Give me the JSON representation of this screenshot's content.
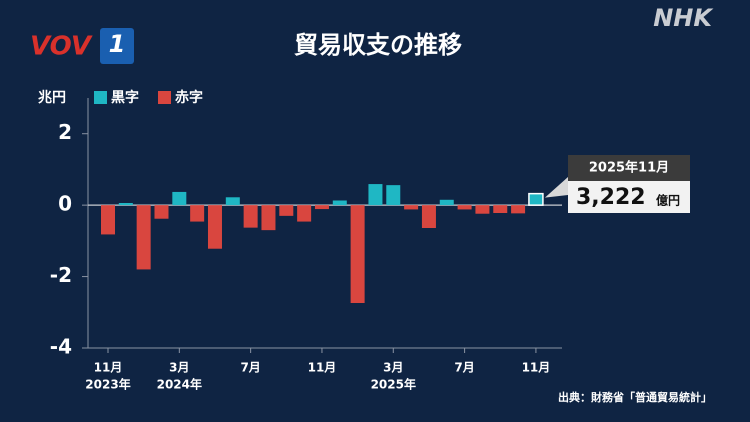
{
  "branding": {
    "left": "VOV",
    "left_badge": "1",
    "right": "NHK"
  },
  "chart_data": {
    "type": "bar",
    "title": "貿易収支の推移",
    "y_unit": "兆円",
    "categories": [
      "11月",
      null,
      null,
      null,
      "3月",
      null,
      null,
      null,
      "7月",
      null,
      null,
      null,
      "11月",
      null,
      null,
      null,
      "3月",
      null,
      null,
      null,
      "7月",
      null,
      null,
      null,
      "11月"
    ],
    "category_years": [
      "2023年",
      null,
      null,
      null,
      "2024年",
      null,
      null,
      null,
      null,
      null,
      null,
      null,
      null,
      null,
      null,
      null,
      "2025年",
      null,
      null,
      null,
      null,
      null,
      null,
      null,
      null
    ],
    "series": [
      {
        "name": "黒字",
        "color": "#1fb7c4",
        "values": [
          null,
          0.06,
          null,
          null,
          0.37,
          null,
          null,
          0.22,
          null,
          null,
          null,
          null,
          null,
          0.13,
          null,
          0.59,
          0.56,
          null,
          null,
          0.15,
          null,
          null,
          null,
          null,
          0.3222
        ],
        "value_labels": [
          null,
          null,
          null,
          null,
          null,
          null,
          null,
          null,
          null,
          null,
          null,
          null,
          null,
          null,
          null,
          null,
          null,
          null,
          null,
          null,
          null,
          null,
          null,
          null,
          "3,222"
        ]
      },
      {
        "name": "赤字",
        "color": "#d9463f",
        "values": [
          -0.82,
          null,
          -1.8,
          -0.38,
          null,
          -0.46,
          -1.22,
          null,
          -0.63,
          -0.7,
          -0.3,
          -0.46,
          -0.11,
          null,
          -2.74,
          null,
          null,
          -0.12,
          -0.64,
          null,
          -0.12,
          -0.24,
          -0.22,
          -0.23,
          null
        ]
      }
    ],
    "highlight": {
      "label": "2025年11月",
      "unit": "億円"
    },
    "ylim": [
      -4,
      3
    ],
    "yticks": [
      -4,
      -2,
      0,
      2
    ],
    "source": "出典：財務省「普通貿易統計」"
  }
}
